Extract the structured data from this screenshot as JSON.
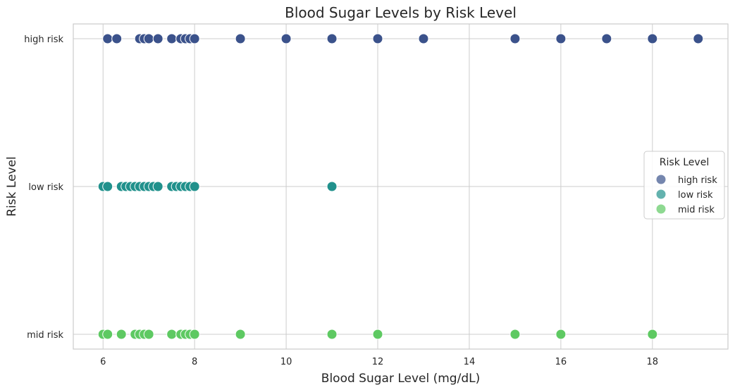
{
  "chart_data": {
    "type": "scatter",
    "title": "Blood Sugar Levels by Risk Level",
    "xlabel": "Blood Sugar Level (mg/dL)",
    "ylabel": "Risk Level",
    "xlim": [
      5.35,
      19.65
    ],
    "xticks": [
      6,
      8,
      10,
      12,
      14,
      16,
      18
    ],
    "categories": [
      "high risk",
      "low risk",
      "mid risk"
    ],
    "grid": true,
    "legend": {
      "title": "Risk Level",
      "placement": "center-right"
    },
    "series": [
      {
        "name": "high risk",
        "color": "#3b528b",
        "x": [
          6.1,
          6.3,
          6.8,
          6.9,
          7.0,
          7.2,
          7.5,
          7.7,
          7.8,
          7.9,
          8.0,
          9.0,
          10.0,
          11.0,
          12.0,
          13.0,
          15.0,
          16.0,
          17.0,
          18.0,
          19.0
        ]
      },
      {
        "name": "low risk",
        "color": "#21918c",
        "x": [
          6.0,
          6.1,
          6.4,
          6.5,
          6.6,
          6.7,
          6.8,
          6.9,
          7.0,
          7.1,
          7.2,
          7.5,
          7.6,
          7.7,
          7.8,
          7.9,
          8.0,
          11.0
        ]
      },
      {
        "name": "mid risk",
        "color": "#5ec962",
        "x": [
          6.0,
          6.1,
          6.4,
          6.7,
          6.8,
          6.9,
          7.0,
          7.5,
          7.7,
          7.8,
          7.9,
          8.0,
          9.0,
          11.0,
          12.0,
          15.0,
          16.0,
          18.0
        ]
      }
    ]
  }
}
